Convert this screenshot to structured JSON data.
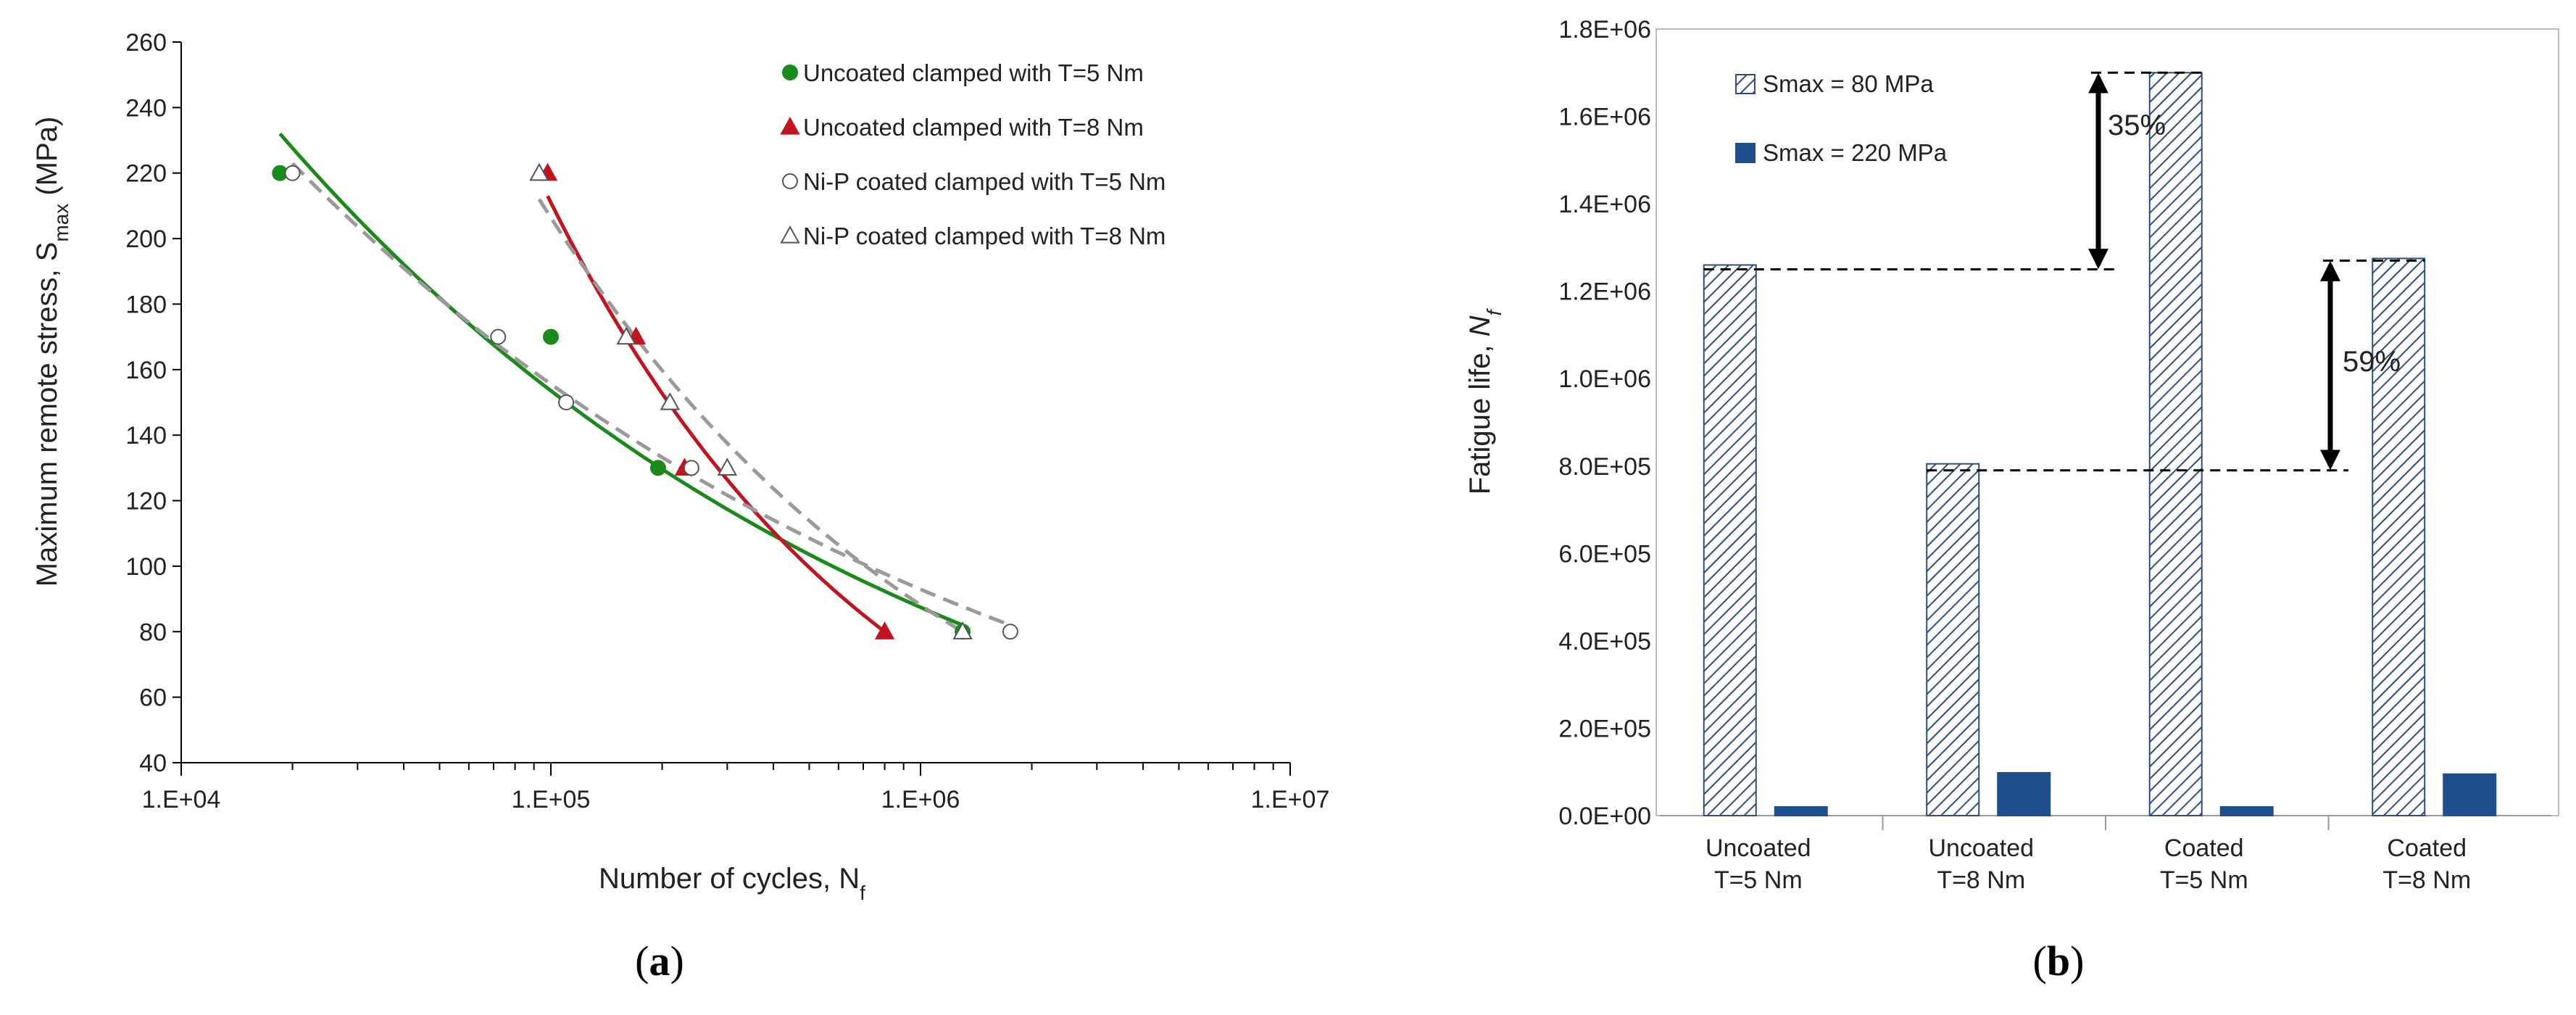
{
  "chart_data": [
    {
      "type": "scatter",
      "panel_label": "(a)",
      "panel_letter": "a",
      "xscale": "log",
      "xlabel": "Number of cycles, N",
      "xlabel_sub": "f",
      "ylabel": "Maximum remote stress, S",
      "ylabel_sub": "max",
      "ylabel_tail": " (MPa)",
      "xlim": [
        10000,
        10000000
      ],
      "ylim": [
        40,
        260
      ],
      "xticks": [
        10000,
        100000,
        1000000,
        10000000
      ],
      "xtick_labels": [
        "1.E+04",
        "1.E+05",
        "1.E+06",
        "1.E+07"
      ],
      "yticks": [
        40,
        60,
        80,
        100,
        120,
        140,
        160,
        180,
        200,
        220,
        240,
        260
      ],
      "ytick_labels": [
        "40",
        "60",
        "80",
        "100",
        "120",
        "140",
        "160",
        "180",
        "200",
        "220",
        "240",
        "260"
      ],
      "legend_position": "top-right",
      "series": [
        {
          "name": "Uncoated clamped with T=5 Nm",
          "marker": "circle-filled",
          "color": "#1a8a1a",
          "x": [
            18500,
            100000,
            195000,
            1300000
          ],
          "y": [
            220,
            170,
            130,
            80
          ],
          "trend": {
            "color": "#1a8a1a",
            "style": "solid",
            "x_range": [
              18500,
              1300000
            ],
            "y_range": [
              232,
              82
            ]
          }
        },
        {
          "name": "Uncoated clamped with T=8 Nm",
          "marker": "triangle-filled",
          "color": "#c0141e",
          "x": [
            98000,
            170000,
            230000,
            800000
          ],
          "y": [
            220,
            170,
            130,
            80
          ],
          "trend": {
            "color": "#c0141e",
            "style": "solid",
            "x_range": [
              98000,
              800000
            ],
            "y_range": [
              213,
              80
            ]
          }
        },
        {
          "name": "Ni-P coated clamped with T=5 Nm",
          "marker": "circle-open",
          "color": "#888888",
          "x": [
            20000,
            72000,
            110000,
            240000,
            1750000
          ],
          "y": [
            220,
            170,
            150,
            130,
            80
          ],
          "trend": {
            "color": "#9a9a9a",
            "style": "dashed",
            "x_range": [
              20000,
              1750000
            ],
            "y_range": [
              223,
              82
            ]
          }
        },
        {
          "name": "Ni-P coated clamped with T=8 Nm",
          "marker": "triangle-open",
          "color": "#888888",
          "x": [
            93000,
            160000,
            210000,
            300000,
            1300000
          ],
          "y": [
            220,
            170,
            150,
            130,
            80
          ],
          "trend": {
            "color": "#9a9a9a",
            "style": "dashed",
            "x_range": [
              93000,
              1300000
            ],
            "y_range": [
              212,
              80
            ]
          }
        }
      ]
    },
    {
      "type": "bar",
      "panel_label": "(b)",
      "panel_letter": "b",
      "ylabel": "Fatigue life, ",
      "ylabel_italic": "N",
      "ylabel_sub": "f",
      "ylim": [
        0,
        1800000
      ],
      "yticks": [
        0,
        200000,
        400000,
        600000,
        800000,
        1000000,
        1200000,
        1400000,
        1600000,
        1800000
      ],
      "ytick_labels": [
        "0.0E+00",
        "2.0E+05",
        "4.0E+05",
        "6.0E+05",
        "8.0E+05",
        "1.0E+06",
        "1.2E+06",
        "1.4E+06",
        "1.6E+06",
        "1.8E+06"
      ],
      "categories": [
        [
          "Uncoated",
          "T=5 Nm"
        ],
        [
          "Uncoated",
          "T=8 Nm"
        ],
        [
          "Coated",
          "T=5 Nm"
        ],
        [
          "Coated",
          "T=8 Nm"
        ]
      ],
      "legend_position": "top-left",
      "series": [
        {
          "name": "Smax = 80 MPa",
          "pattern": "hatched",
          "color": "#2e4f7e",
          "values": [
            1260000,
            805000,
            1700000,
            1275000
          ]
        },
        {
          "name": "Smax = 220 MPa",
          "pattern": "solid",
          "color": "#1f4e8c",
          "values": [
            20000,
            98000,
            20000,
            95000
          ]
        }
      ],
      "annotations": [
        {
          "text": "35%",
          "from_value": 1250000,
          "to_value": 1700000
        },
        {
          "text": "59%",
          "from_value": 790000,
          "to_value": 1270000
        }
      ]
    }
  ]
}
